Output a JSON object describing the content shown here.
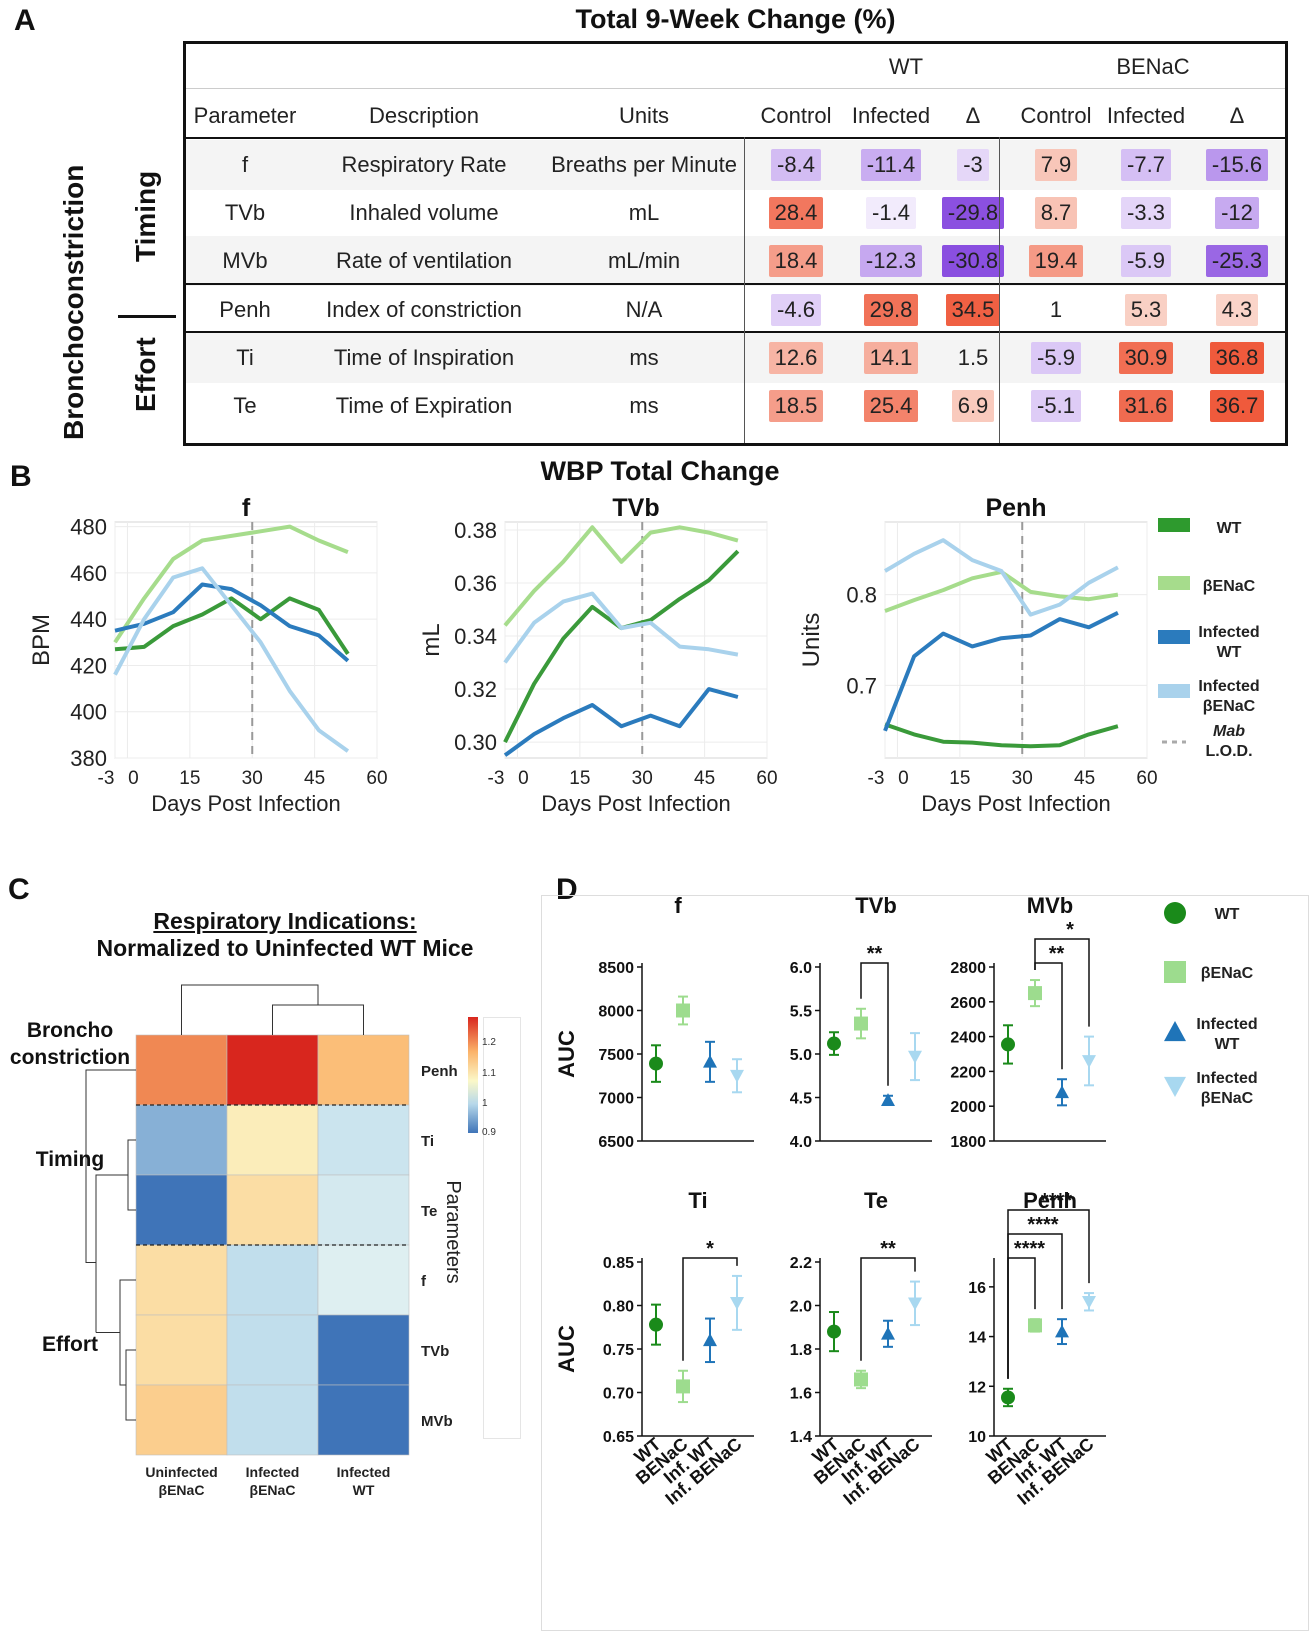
{
  "panelA": {
    "label": "A",
    "title": "Total 9-Week Change (%)",
    "group_headers": [
      "WT",
      "BENaC"
    ],
    "columns": [
      "Parameter",
      "Description",
      "Units",
      "Control",
      "Infected",
      "Δ",
      "Control",
      "Infected",
      "Δ"
    ],
    "side_labels": {
      "outer": "Bronchoconstriction",
      "timing": "Timing",
      "effort": "Effort"
    },
    "rows": [
      {
        "param": "f",
        "desc": "Respiratory Rate",
        "units": "Breaths per Minute",
        "values": [
          "-8.4",
          "-11.4",
          "-3",
          "7.9",
          "-7.7",
          "-15.6"
        ]
      },
      {
        "param": "TVb",
        "desc": "Inhaled volume",
        "units": "mL",
        "values": [
          "28.4",
          "-1.4",
          "-29.8",
          "8.7",
          "-3.3",
          "-12"
        ]
      },
      {
        "param": "MVb",
        "desc": "Rate of ventilation",
        "units": "mL/min",
        "values": [
          "18.4",
          "-12.3",
          "-30.8",
          "19.4",
          "-5.9",
          "-25.3"
        ]
      },
      {
        "param": "Penh",
        "desc": "Index of constriction",
        "units": "N/A",
        "values": [
          "-4.6",
          "29.8",
          "34.5",
          "1",
          "5.3",
          "4.3"
        ]
      },
      {
        "param": "Ti",
        "desc": "Time of Inspiration",
        "units": "ms",
        "values": [
          "12.6",
          "14.1",
          "1.5",
          "-5.9",
          "30.9",
          "36.8"
        ]
      },
      {
        "param": "Te",
        "desc": "Time of Expiration",
        "units": "ms",
        "values": [
          "18.5",
          "25.4",
          "6.9",
          "-5.1",
          "31.6",
          "36.7"
        ]
      }
    ]
  },
  "panelB": {
    "label": "B",
    "title": "WBP Total Change",
    "legend": [
      {
        "name": "WT",
        "color": "#2e9a2e"
      },
      {
        "name": "βENaC",
        "color": "#a6dc8c"
      },
      {
        "name": "Infected WT",
        "color": "#2b7bbd"
      },
      {
        "name": "Infected βENaC",
        "color": "#a9d2ec"
      },
      {
        "name": "Mab L.O.D.",
        "color": "#aaaaaa"
      }
    ]
  },
  "chart_data": [
    {
      "type": "line",
      "title": "f",
      "xlabel": "Days Post Infection",
      "ylabel": "BPM",
      "xlim": [
        -3,
        60
      ],
      "ylim": [
        380,
        482
      ],
      "xticks": [
        "-3",
        "0",
        "15",
        "30",
        "45",
        "60"
      ],
      "yticks": [
        "480",
        "460",
        "440",
        "420",
        "400",
        "380"
      ],
      "lod_x": 30,
      "x": [
        -3,
        4,
        11,
        18,
        25,
        32,
        39,
        46,
        53
      ],
      "series": [
        {
          "name": "WT",
          "color": "#3a9a3a",
          "values": [
            427,
            428,
            437,
            442,
            449,
            440,
            449,
            444,
            425
          ]
        },
        {
          "name": "βENaC",
          "color": "#a6dc8c",
          "values": [
            430,
            449,
            466,
            474,
            476,
            478,
            480,
            474,
            469
          ]
        },
        {
          "name": "Infected WT",
          "color": "#2b7bbd",
          "values": [
            435,
            438,
            443,
            455,
            453,
            446,
            437,
            433,
            422
          ]
        },
        {
          "name": "Infected βENaC",
          "color": "#a9d2ec",
          "values": [
            416,
            440,
            458,
            462,
            446,
            430,
            409,
            392,
            383
          ]
        }
      ]
    },
    {
      "type": "line",
      "title": "TVb",
      "xlabel": "Days Post Infection",
      "ylabel": "mL",
      "xlim": [
        -3,
        60
      ],
      "ylim": [
        0.294,
        0.383
      ],
      "xticks": [
        "-3",
        "0",
        "15",
        "30",
        "45",
        "60"
      ],
      "yticks": [
        "0.38",
        "0.36",
        "0.34",
        "0.32",
        "0.30"
      ],
      "lod_x": 30,
      "x": [
        -3,
        4,
        11,
        18,
        25,
        32,
        39,
        46,
        53
      ],
      "series": [
        {
          "name": "WT",
          "color": "#3a9a3a",
          "values": [
            0.3,
            0.322,
            0.339,
            0.351,
            0.343,
            0.346,
            0.354,
            0.361,
            0.372
          ]
        },
        {
          "name": "βENaC",
          "color": "#a6dc8c",
          "values": [
            0.344,
            0.357,
            0.368,
            0.381,
            0.368,
            0.379,
            0.381,
            0.379,
            0.376
          ]
        },
        {
          "name": "Infected WT",
          "color": "#2b7bbd",
          "values": [
            0.295,
            0.303,
            0.309,
            0.314,
            0.306,
            0.31,
            0.306,
            0.32,
            0.317
          ]
        },
        {
          "name": "Infected βENaC",
          "color": "#a9d2ec",
          "values": [
            0.33,
            0.345,
            0.353,
            0.356,
            0.343,
            0.345,
            0.336,
            0.335,
            0.333
          ]
        }
      ]
    },
    {
      "type": "line",
      "title": "Penh",
      "xlabel": "Days Post Infection",
      "ylabel": "Units",
      "xlim": [
        -3,
        60
      ],
      "ylim": [
        0.62,
        0.88
      ],
      "xticks": [
        "-3",
        "0",
        "15",
        "30",
        "45",
        "60"
      ],
      "yticks": [
        "0.8",
        "0.7"
      ],
      "lod_x": 30,
      "x": [
        -3,
        4,
        11,
        18,
        25,
        32,
        39,
        46,
        53
      ],
      "series": [
        {
          "name": "WT",
          "color": "#3a9a3a",
          "values": [
            0.657,
            0.646,
            0.638,
            0.637,
            0.634,
            0.633,
            0.634,
            0.646,
            0.655
          ]
        },
        {
          "name": "βENaC",
          "color": "#a6dc8c",
          "values": [
            0.782,
            0.794,
            0.805,
            0.818,
            0.825,
            0.803,
            0.798,
            0.795,
            0.8
          ]
        },
        {
          "name": "Infected WT",
          "color": "#2b7bbd",
          "values": [
            0.65,
            0.732,
            0.757,
            0.743,
            0.752,
            0.755,
            0.773,
            0.764,
            0.78
          ]
        },
        {
          "name": "Infected βENaC",
          "color": "#a9d2ec",
          "values": [
            0.826,
            0.845,
            0.86,
            0.838,
            0.826,
            0.778,
            0.789,
            0.813,
            0.83
          ]
        }
      ]
    },
    {
      "type": "heatmap",
      "title": "Respiratory Indications: Normalized to Uninfected WT Mice",
      "columns": [
        "Uninfected βENaC",
        "Infected βENaC",
        "Infected WT"
      ],
      "rows": [
        "Penh",
        "Ti",
        "Te",
        "f",
        "TVb",
        "MVb"
      ],
      "values": [
        [
          1.17,
          1.26,
          1.11
        ],
        [
          0.93,
          1.02,
          0.97
        ],
        [
          0.9,
          1.05,
          0.98
        ],
        [
          1.05,
          0.96,
          0.99
        ],
        [
          1.05,
          0.96,
          0.9
        ],
        [
          1.08,
          0.96,
          0.9
        ]
      ],
      "scale": [
        0.9,
        1.0,
        1.1,
        1.2
      ]
    },
    {
      "type": "scatter",
      "subtype": "mean_error",
      "categories": [
        "WT",
        "BENaC",
        "Inf. WT",
        "Inf. BENaC"
      ],
      "legend": [
        "WT",
        "βENaC",
        "Infected WT",
        "Infected βENaC"
      ],
      "panels": [
        {
          "title": "f",
          "ylabel": "AUC",
          "ylim": [
            6500,
            8500
          ],
          "yticks": [
            "8500",
            "8000",
            "7500",
            "7000",
            "6500"
          ],
          "means": [
            7390,
            8000,
            7410,
            7250
          ],
          "err": [
            210,
            160,
            230,
            190
          ],
          "sig": []
        },
        {
          "title": "TVb",
          "ylabel": "",
          "ylim": [
            4.0,
            6.0
          ],
          "yticks": [
            "6.0",
            "5.5",
            "5.0",
            "4.5",
            "4.0"
          ],
          "means": [
            5.12,
            5.35,
            4.47,
            4.97
          ],
          "err": [
            0.13,
            0.17,
            0.05,
            0.27
          ],
          "sig": [
            {
              "from": 1,
              "to": 2,
              "label": "**"
            }
          ]
        },
        {
          "title": "MVb",
          "ylabel": "",
          "ylim": [
            1800,
            2800
          ],
          "yticks": [
            "2800",
            "2600",
            "2400",
            "2200",
            "2000",
            "1800"
          ],
          "means": [
            2355,
            2650,
            2080,
            2260
          ],
          "err": [
            110,
            75,
            75,
            140
          ],
          "sig": [
            {
              "from": 1,
              "to": 2,
              "label": "**"
            },
            {
              "from": 1,
              "to": 3,
              "label": "*"
            }
          ]
        },
        {
          "title": "Ti",
          "ylabel": "AUC",
          "ylim": [
            0.65,
            0.85
          ],
          "yticks": [
            "0.85",
            "0.80",
            "0.75",
            "0.70",
            "0.65"
          ],
          "means": [
            0.778,
            0.707,
            0.76,
            0.803
          ],
          "err": [
            0.023,
            0.018,
            0.025,
            0.031
          ],
          "sig": [
            {
              "from": 1,
              "to": 3,
              "label": "*"
            }
          ]
        },
        {
          "title": "Te",
          "ylabel": "",
          "ylim": [
            1.4,
            2.2
          ],
          "yticks": [
            "2.2",
            "2.0",
            "1.8",
            "1.6",
            "1.4"
          ],
          "means": [
            1.88,
            1.66,
            1.87,
            2.01
          ],
          "err": [
            0.09,
            0.04,
            0.06,
            0.1
          ],
          "sig": [
            {
              "from": 1,
              "to": 3,
              "label": "**"
            }
          ]
        },
        {
          "title": "Penh",
          "ylabel": "",
          "ylim": [
            10,
            17
          ],
          "yticks": [
            "16",
            "14",
            "12",
            "10"
          ],
          "means": [
            11.55,
            14.45,
            14.2,
            15.4
          ],
          "err": [
            0.35,
            0.25,
            0.5,
            0.35
          ],
          "sig": [
            {
              "from": 0,
              "to": 1,
              "label": "****"
            },
            {
              "from": 0,
              "to": 2,
              "label": "****"
            },
            {
              "from": 0,
              "to": 3,
              "label": "****"
            }
          ]
        }
      ]
    }
  ],
  "panelC": {
    "label": "C",
    "title_line1": "Respiratory Indications:",
    "title_line2": "Normalized to Uninfected WT Mice",
    "row_groups": [
      "Broncho constriction",
      "Timing",
      "Effort"
    ],
    "axis_label": "Parameters",
    "col_labels": [
      [
        "Uninfected",
        "βENaC"
      ],
      [
        "Infected",
        "βENaC"
      ],
      [
        "Infected",
        "WT"
      ]
    ],
    "scale_ticks": [
      "1.2",
      "1.1",
      "1",
      "0.9"
    ]
  },
  "panelD": {
    "label": "D",
    "legend": [
      {
        "name": "WT",
        "color": "#1a8a1a",
        "shape": "circle"
      },
      {
        "name": "βENaC",
        "color": "#9ddc8e",
        "shape": "square"
      },
      {
        "name": "Infected WT",
        "color": "#1f74b8",
        "shape": "triangle-up"
      },
      {
        "name": "Infected βENaC",
        "color": "#a8d8f0",
        "shape": "triangle-down"
      }
    ]
  }
}
